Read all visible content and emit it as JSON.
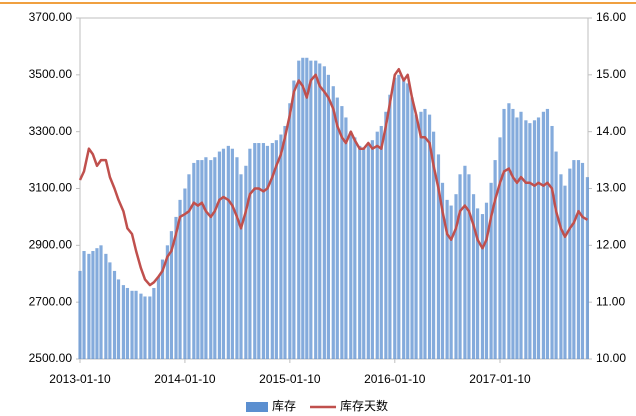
{
  "chart_data": {
    "type": "bar-line",
    "x": [
      "2013-01-10",
      "2013-01-24",
      "2013-02-10",
      "2013-02-24",
      "2013-03-10",
      "2013-03-24",
      "2013-04-10",
      "2013-04-24",
      "2013-05-10",
      "2013-05-24",
      "2013-06-10",
      "2013-06-24",
      "2013-07-10",
      "2013-07-24",
      "2013-08-10",
      "2013-08-24",
      "2013-09-10",
      "2013-09-24",
      "2013-10-10",
      "2013-10-24",
      "2013-11-10",
      "2013-11-24",
      "2013-12-10",
      "2013-12-24",
      "2014-01-10",
      "2014-01-24",
      "2014-02-10",
      "2014-02-24",
      "2014-03-10",
      "2014-03-24",
      "2014-04-10",
      "2014-04-24",
      "2014-05-10",
      "2014-05-24",
      "2014-06-10",
      "2014-06-24",
      "2014-07-10",
      "2014-07-24",
      "2014-08-10",
      "2014-08-24",
      "2014-09-10",
      "2014-09-24",
      "2014-10-10",
      "2014-10-24",
      "2014-11-10",
      "2014-11-24",
      "2014-12-10",
      "2014-12-24",
      "2015-01-10",
      "2015-01-24",
      "2015-02-10",
      "2015-02-24",
      "2015-03-10",
      "2015-03-24",
      "2015-04-10",
      "2015-04-24",
      "2015-05-10",
      "2015-05-24",
      "2015-06-10",
      "2015-06-24",
      "2015-07-10",
      "2015-07-24",
      "2015-08-10",
      "2015-08-24",
      "2015-09-10",
      "2015-09-24",
      "2015-10-10",
      "2015-10-24",
      "2015-11-10",
      "2015-11-24",
      "2015-12-10",
      "2015-12-24",
      "2016-01-10",
      "2016-01-24",
      "2016-02-10",
      "2016-02-24",
      "2016-03-10",
      "2016-03-24",
      "2016-04-10",
      "2016-04-24",
      "2016-05-10",
      "2016-05-24",
      "2016-06-10",
      "2016-06-24",
      "2016-07-10",
      "2016-07-24",
      "2016-08-10",
      "2016-08-24",
      "2016-09-10",
      "2016-09-24",
      "2016-10-10",
      "2016-10-24",
      "2016-11-10",
      "2016-11-24",
      "2016-12-10",
      "2016-12-24",
      "2017-01-10",
      "2017-01-24",
      "2017-02-10",
      "2017-02-24",
      "2017-03-10",
      "2017-03-24",
      "2017-04-10",
      "2017-04-24",
      "2017-05-10",
      "2017-05-24",
      "2017-06-10",
      "2017-06-24",
      "2017-07-10",
      "2017-07-24",
      "2017-08-10",
      "2017-08-24",
      "2017-09-10",
      "2017-09-24",
      "2017-10-10",
      "2017-10-24",
      "2017-11-10"
    ],
    "series": [
      {
        "name": "库存",
        "type": "bar",
        "color": "#5b8fd0",
        "values": [
          2810,
          2880,
          2870,
          2880,
          2890,
          2900,
          2870,
          2840,
          2810,
          2780,
          2760,
          2750,
          2740,
          2740,
          2730,
          2720,
          2720,
          2750,
          2790,
          2850,
          2900,
          2950,
          3000,
          3060,
          3100,
          3150,
          3190,
          3200,
          3200,
          3210,
          3200,
          3210,
          3230,
          3240,
          3250,
          3240,
          3210,
          3150,
          3180,
          3240,
          3260,
          3260,
          3260,
          3250,
          3260,
          3270,
          3290,
          3320,
          3400,
          3480,
          3550,
          3560,
          3560,
          3550,
          3550,
          3540,
          3530,
          3500,
          3460,
          3420,
          3390,
          3350,
          3300,
          3280,
          3250,
          3240,
          3260,
          3270,
          3300,
          3320,
          3370,
          3430,
          3490,
          3500,
          3480,
          3470,
          3420,
          3360,
          3370,
          3380,
          3360,
          3300,
          3220,
          3120,
          3060,
          3040,
          3080,
          3150,
          3180,
          3150,
          3080,
          3030,
          3010,
          3050,
          3120,
          3200,
          3280,
          3380,
          3400,
          3380,
          3350,
          3370,
          3340,
          3330,
          3340,
          3350,
          3370,
          3380,
          3320,
          3230,
          3150,
          3110,
          3170,
          3200,
          3200,
          3190,
          3140
        ]
      },
      {
        "name": "库存天数",
        "type": "line",
        "axis": "y2",
        "color": "#c0504d",
        "values": [
          13.15,
          13.3,
          13.7,
          13.6,
          13.4,
          13.5,
          13.5,
          13.2,
          13.0,
          12.8,
          12.6,
          12.3,
          12.2,
          11.9,
          11.6,
          11.4,
          11.3,
          11.35,
          11.45,
          11.55,
          11.8,
          11.9,
          12.2,
          12.5,
          12.55,
          12.6,
          12.75,
          12.7,
          12.75,
          12.6,
          12.5,
          12.6,
          12.8,
          12.85,
          12.8,
          12.7,
          12.5,
          12.3,
          12.6,
          12.9,
          13.0,
          13.0,
          12.95,
          13.0,
          13.2,
          13.4,
          13.6,
          13.9,
          14.3,
          14.7,
          14.9,
          14.8,
          14.6,
          14.9,
          15.0,
          14.8,
          14.7,
          14.6,
          14.4,
          14.1,
          13.9,
          13.8,
          14.0,
          13.85,
          13.7,
          13.7,
          13.8,
          13.7,
          13.75,
          13.7,
          14.1,
          14.5,
          15.0,
          15.1,
          14.9,
          15.0,
          14.6,
          14.3,
          13.9,
          13.9,
          13.8,
          13.4,
          13.0,
          12.6,
          12.2,
          12.1,
          12.3,
          12.6,
          12.7,
          12.6,
          12.35,
          12.1,
          11.95,
          12.1,
          12.5,
          12.8,
          13.1,
          13.3,
          13.35,
          13.2,
          13.1,
          13.2,
          13.1,
          13.1,
          13.05,
          13.1,
          13.05,
          13.1,
          13.0,
          12.6,
          12.3,
          12.15,
          12.3,
          12.4,
          12.6,
          12.5,
          12.45
        ]
      }
    ],
    "ylim": [
      2500,
      3700
    ],
    "yticks": [
      {
        "value": 2500,
        "label": "2500.00"
      },
      {
        "value": 2700,
        "label": "2700.00"
      },
      {
        "value": 2900,
        "label": "2900.00"
      },
      {
        "value": 3100,
        "label": "3100.00"
      },
      {
        "value": 3300,
        "label": "3300.00"
      },
      {
        "value": 3500,
        "label": "3500.00"
      },
      {
        "value": 3700,
        "label": "3700.00"
      }
    ],
    "y2lim": [
      10,
      16
    ],
    "y2ticks": [
      {
        "value": 10,
        "label": "10.00"
      },
      {
        "value": 11,
        "label": "11.00"
      },
      {
        "value": 12,
        "label": "12.00"
      },
      {
        "value": 13,
        "label": "13.00"
      },
      {
        "value": 14,
        "label": "14.00"
      },
      {
        "value": 15,
        "label": "15.00"
      },
      {
        "value": 16,
        "label": "16.00"
      }
    ],
    "xticks": [
      "2013-01-10",
      "2014-01-10",
      "2015-01-10",
      "2016-01-10",
      "2017-01-10"
    ],
    "legend": "bottom"
  }
}
